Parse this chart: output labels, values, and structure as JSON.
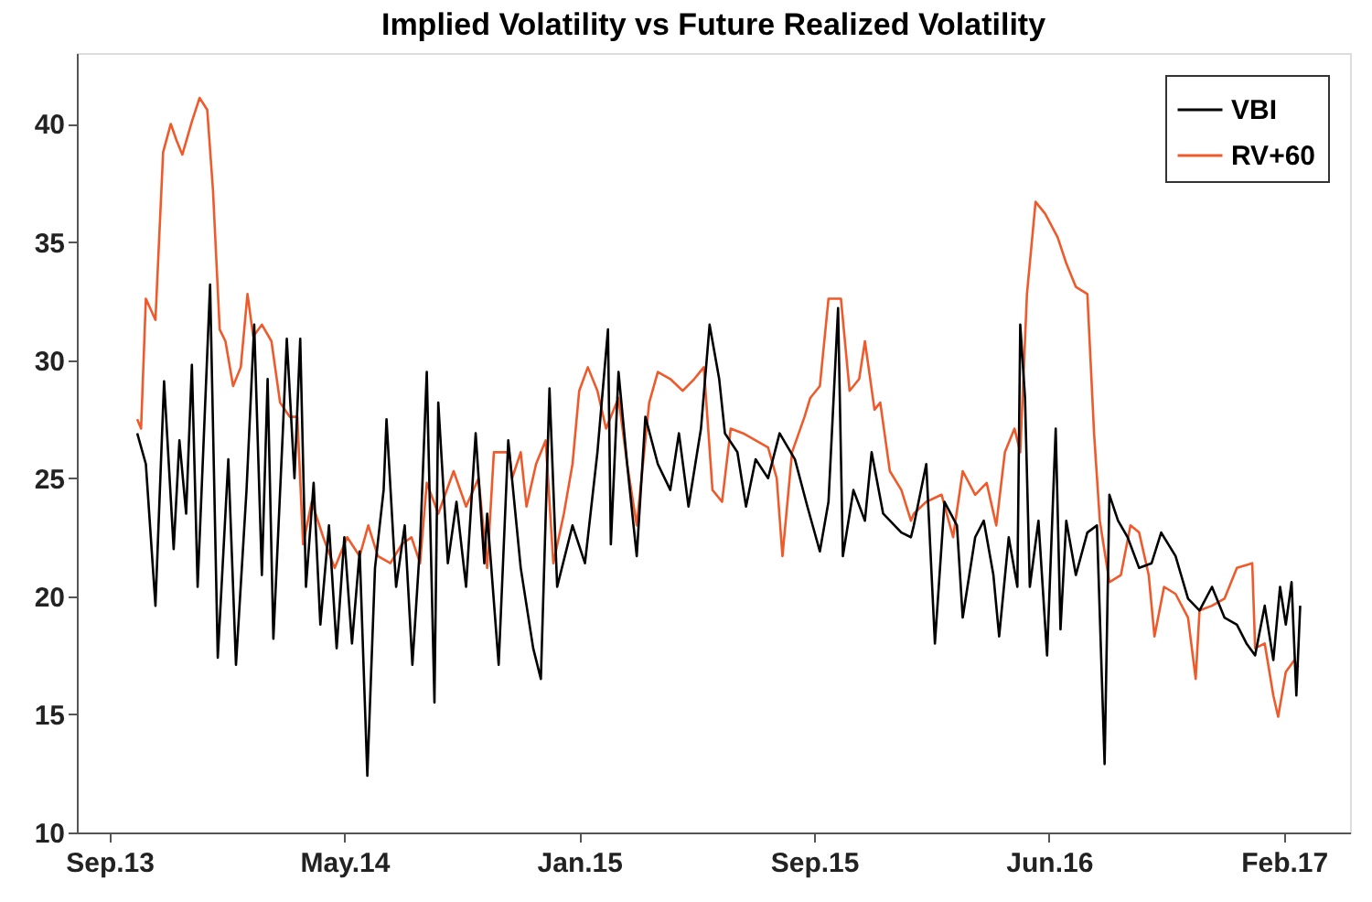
{
  "chart_data": {
    "type": "line",
    "title": "Implied Volatility vs Future Realized Volatility",
    "xlim": [
      "2013-08-22",
      "2017-04-11"
    ],
    "xticks": [
      {
        "value": "2013-09-25",
        "label": "Sep.13"
      },
      {
        "value": "2014-05-28",
        "label": "May.14"
      },
      {
        "value": "2015-01-28",
        "label": "Jan.15"
      },
      {
        "value": "2015-09-30",
        "label": "Sep.15"
      },
      {
        "value": "2016-06-01",
        "label": "Jun.16"
      },
      {
        "value": "2017-02-01",
        "label": "Feb.17"
      }
    ],
    "ylim": [
      10,
      43
    ],
    "yticks": [
      10,
      15,
      20,
      25,
      30,
      35,
      40
    ],
    "grid": false,
    "legend": "top right",
    "line_style": "solid",
    "series": [
      {
        "name": "VBI",
        "color": "#000000",
        "x": [
          "2013-10-24",
          "2013-11-02",
          "2013-11-12",
          "2013-11-21",
          "2013-12-01",
          "2013-12-07",
          "2013-12-14",
          "2013-12-20",
          "2013-12-26",
          "2014-01-08",
          "2014-01-16",
          "2014-01-27",
          "2014-02-04",
          "2014-02-15",
          "2014-02-23",
          "2014-03-03",
          "2014-03-09",
          "2014-03-15",
          "2014-03-25",
          "2014-03-29",
          "2014-04-06",
          "2014-04-12",
          "2014-04-18",
          "2014-04-26",
          "2014-05-03",
          "2014-05-12",
          "2014-05-20",
          "2014-05-28",
          "2014-06-05",
          "2014-06-13",
          "2014-06-21",
          "2014-06-29",
          "2014-07-08",
          "2014-07-11",
          "2014-07-21",
          "2014-07-30",
          "2014-08-07",
          "2014-08-15",
          "2014-08-22",
          "2014-08-30",
          "2014-09-03",
          "2014-09-13",
          "2014-09-22",
          "2014-10-02",
          "2014-10-12",
          "2014-10-21",
          "2014-10-24",
          "2014-11-05",
          "2014-11-15",
          "2014-11-28",
          "2014-12-11",
          "2014-12-19",
          "2014-12-28",
          "2015-01-05",
          "2015-01-21",
          "2015-02-03",
          "2015-02-16",
          "2015-02-27",
          "2015-03-02",
          "2015-03-10",
          "2015-03-19",
          "2015-03-29",
          "2015-04-07",
          "2015-04-20",
          "2015-05-03",
          "2015-05-12",
          "2015-05-22",
          "2015-06-04",
          "2015-06-13",
          "2015-06-23",
          "2015-06-29",
          "2015-07-12",
          "2015-07-21",
          "2015-07-31",
          "2015-08-13",
          "2015-08-25",
          "2015-09-10",
          "2015-09-23",
          "2015-10-06",
          "2015-10-15",
          "2015-10-25",
          "2015-10-30",
          "2015-11-10",
          "2015-11-22",
          "2015-11-29",
          "2015-12-11",
          "2015-12-30",
          "2016-01-09",
          "2016-01-12",
          "2016-01-25",
          "2016-02-03",
          "2016-02-13",
          "2016-02-26",
          "2016-03-03",
          "2016-03-16",
          "2016-03-25",
          "2016-04-04",
          "2016-04-10",
          "2016-04-20",
          "2016-04-29",
          "2016-05-02",
          "2016-05-07",
          "2016-05-12",
          "2016-05-21",
          "2016-05-30",
          "2016-06-08",
          "2016-06-13",
          "2016-06-19",
          "2016-06-29",
          "2016-07-11",
          "2016-07-21",
          "2016-07-29",
          "2016-08-03",
          "2016-08-12",
          "2016-08-22",
          "2016-09-03",
          "2016-09-16",
          "2016-09-26",
          "2016-10-11",
          "2016-10-24",
          "2016-11-05",
          "2016-11-18",
          "2016-12-01",
          "2016-12-14",
          "2016-12-24",
          "2017-01-02",
          "2017-01-12",
          "2017-01-21",
          "2017-01-28",
          "2017-02-03",
          "2017-02-09",
          "2017-02-14",
          "2017-02-18"
        ],
        "values": [
          26.9,
          25.6,
          19.6,
          29.1,
          22,
          26.6,
          23.5,
          29.8,
          20.4,
          33.2,
          17.4,
          25.8,
          17.1,
          24.5,
          31.5,
          20.9,
          29.2,
          18.2,
          27.1,
          30.9,
          25,
          30.9,
          20.4,
          24.8,
          18.8,
          23,
          17.8,
          22.5,
          18,
          21.9,
          12.4,
          21.2,
          24.5,
          27.5,
          20.4,
          23,
          17.1,
          22.2,
          29.5,
          15.5,
          28.2,
          21.4,
          24,
          20.4,
          26.9,
          21.4,
          23.5,
          17.1,
          26.6,
          21.2,
          17.8,
          16.5,
          28.8,
          20.4,
          23,
          21.4,
          26.1,
          31.3,
          22.2,
          29.5,
          25.6,
          21.7,
          27.6,
          25.6,
          24.5,
          26.9,
          23.8,
          27.1,
          31.5,
          29.2,
          26.9,
          26.1,
          23.8,
          25.8,
          25,
          26.9,
          25.8,
          23.8,
          21.9,
          24,
          32.2,
          21.7,
          24.5,
          23.2,
          26.1,
          23.5,
          22.7,
          22.5,
          23,
          25.6,
          18,
          24,
          23,
          19.1,
          22.5,
          23.2,
          20.9,
          18.3,
          22.5,
          20.4,
          31.5,
          28.4,
          20.4,
          23.2,
          17.5,
          27.1,
          18.6,
          23.2,
          20.9,
          22.7,
          23,
          12.9,
          24.3,
          23.2,
          22.5,
          21.2,
          21.4,
          22.7,
          21.7,
          19.9,
          19.4,
          20.4,
          19.1,
          18.8,
          18,
          17.5,
          19.6,
          17.3,
          20.4,
          18.8,
          20.6,
          15.8,
          19.6
        ]
      },
      {
        "name": "RV+60",
        "color": "#f05a2b",
        "x": [
          "2013-10-24",
          "2013-10-28",
          "2013-11-02",
          "2013-11-12",
          "2013-11-20",
          "2013-11-28",
          "2013-12-04",
          "2013-12-10",
          "2013-12-20",
          "2013-12-28",
          "2014-01-05",
          "2014-01-11",
          "2014-01-18",
          "2014-01-24",
          "2014-02-01",
          "2014-02-09",
          "2014-02-16",
          "2014-02-22",
          "2014-03-03",
          "2014-03-13",
          "2014-03-22",
          "2014-04-01",
          "2014-04-09",
          "2014-04-15",
          "2014-04-24",
          "2014-05-06",
          "2014-05-18",
          "2014-05-31",
          "2014-06-13",
          "2014-06-22",
          "2014-07-02",
          "2014-07-15",
          "2014-07-27",
          "2014-08-06",
          "2014-08-15",
          "2014-08-22",
          "2014-09-03",
          "2014-09-19",
          "2014-10-02",
          "2014-10-15",
          "2014-10-24",
          "2014-10-31",
          "2014-11-16",
          "2014-11-19",
          "2014-11-28",
          "2014-12-04",
          "2014-12-14",
          "2014-12-24",
          "2015-01-01",
          "2015-01-12",
          "2015-01-21",
          "2015-01-28",
          "2015-02-06",
          "2015-02-16",
          "2015-02-25",
          "2015-03-10",
          "2015-03-19",
          "2015-03-29",
          "2015-04-11",
          "2015-04-20",
          "2015-05-03",
          "2015-05-16",
          "2015-05-28",
          "2015-06-07",
          "2015-06-16",
          "2015-06-26",
          "2015-07-05",
          "2015-07-18",
          "2015-07-31",
          "2015-08-13",
          "2015-08-22",
          "2015-08-28",
          "2015-09-07",
          "2015-09-20",
          "2015-09-26",
          "2015-10-06",
          "2015-10-15",
          "2015-10-28",
          "2015-11-06",
          "2015-11-16",
          "2015-11-22",
          "2015-12-02",
          "2015-12-08",
          "2015-12-18",
          "2015-12-30",
          "2016-01-09",
          "2016-01-12",
          "2016-01-25",
          "2016-02-10",
          "2016-02-22",
          "2016-03-03",
          "2016-03-16",
          "2016-03-28",
          "2016-04-07",
          "2016-04-16",
          "2016-04-26",
          "2016-05-02",
          "2016-05-09",
          "2016-05-18",
          "2016-05-28",
          "2016-06-10",
          "2016-06-19",
          "2016-06-29",
          "2016-07-11",
          "2016-07-18",
          "2016-07-24",
          "2016-08-03",
          "2016-08-15",
          "2016-08-25",
          "2016-09-03",
          "2016-09-13",
          "2016-09-19",
          "2016-09-29",
          "2016-10-11",
          "2016-10-24",
          "2016-11-01",
          "2016-11-05",
          "2016-11-18",
          "2016-12-01",
          "2016-12-14",
          "2016-12-30",
          "2017-01-02",
          "2017-01-12",
          "2017-01-21",
          "2017-01-26",
          "2017-02-03",
          "2017-02-12",
          "2017-02-16"
        ],
        "values": [
          27.5,
          27.1,
          32.6,
          31.7,
          38.8,
          40,
          39.3,
          38.7,
          40.1,
          41.1,
          40.6,
          37.2,
          31.3,
          30.8,
          28.9,
          29.7,
          32.8,
          31,
          31.5,
          30.8,
          28.2,
          27.6,
          27.6,
          22.2,
          24,
          22.5,
          21.2,
          22.5,
          21.7,
          23,
          21.7,
          21.4,
          22.2,
          22.5,
          21.4,
          24.8,
          23.5,
          25.3,
          23.8,
          25,
          21.2,
          26.1,
          26.1,
          25,
          26.1,
          23.8,
          25.6,
          26.6,
          21.4,
          23.5,
          25.6,
          28.7,
          29.7,
          28.7,
          27.1,
          28.4,
          25.6,
          23,
          28.2,
          29.5,
          29.2,
          28.7,
          29.2,
          29.7,
          24.5,
          24,
          27.1,
          26.9,
          26.6,
          26.3,
          25,
          21.7,
          26.1,
          27.6,
          28.4,
          28.9,
          32.6,
          32.6,
          28.7,
          29.2,
          30.8,
          27.9,
          28.2,
          25.3,
          24.5,
          23.2,
          23.5,
          24,
          24.3,
          22.5,
          25.3,
          24.3,
          24.8,
          23,
          26.1,
          27.1,
          26.1,
          32.8,
          36.7,
          36.2,
          35.2,
          34.1,
          33.1,
          32.8,
          26.9,
          23.2,
          20.6,
          20.9,
          23,
          22.7,
          20.9,
          18.3,
          20.4,
          20.1,
          19.1,
          16.5,
          19.4,
          19.6,
          19.9,
          21.2,
          21.4,
          17.8,
          18,
          15.8,
          14.9,
          16.8,
          17.3,
          17
        ]
      }
    ]
  }
}
